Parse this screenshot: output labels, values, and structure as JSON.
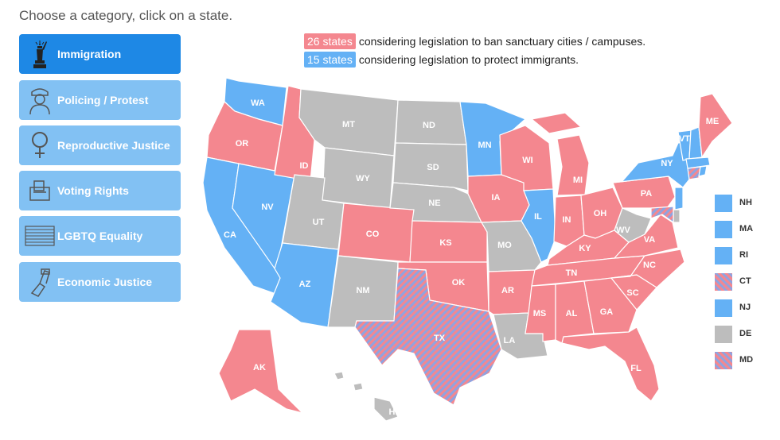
{
  "prompt": "Choose a category, click on a state.",
  "categories": [
    {
      "label": "Immigration",
      "icon": "statue-of-liberty-icon",
      "active": true
    },
    {
      "label": "Policing / Protest",
      "icon": "police-officer-icon",
      "active": false
    },
    {
      "label": "Reproductive Justice",
      "icon": "female-symbol-icon",
      "active": false
    },
    {
      "label": "Voting Rights",
      "icon": "ballot-box-icon",
      "active": false
    },
    {
      "label": "LGBTQ Equality",
      "icon": "flag-icon",
      "active": false
    },
    {
      "label": "Economic Justice",
      "icon": "protest-fist-icon",
      "active": false
    }
  ],
  "legend": [
    {
      "badge": "26 states",
      "text": "considering legislation to ban sanctuary cities / campuses.",
      "color": "#f4878f"
    },
    {
      "badge": "15 states",
      "text": "considering legislation to protect immigrants.",
      "color": "#64b1f5"
    }
  ],
  "colors": {
    "ban": "#f4878f",
    "protect": "#64b1f5",
    "none": "#bdbdbd",
    "both": "striped"
  },
  "states": {
    "WA": "protect",
    "OR": "ban",
    "CA": "protect",
    "NV": "protect",
    "ID": "ban",
    "MT": "none",
    "WY": "none",
    "UT": "none",
    "AZ": "protect",
    "CO": "ban",
    "NM": "none",
    "ND": "none",
    "SD": "none",
    "NE": "none",
    "KS": "ban",
    "OK": "ban",
    "TX": "both",
    "MN": "protect",
    "IA": "ban",
    "MO": "none",
    "AR": "ban",
    "LA": "none",
    "WI": "ban",
    "IL": "protect",
    "MI": "ban",
    "IN": "ban",
    "OH": "ban",
    "KY": "ban",
    "TN": "ban",
    "MS": "ban",
    "AL": "ban",
    "GA": "ban",
    "FL": "ban",
    "SC": "ban",
    "NC": "ban",
    "VA": "ban",
    "WV": "none",
    "PA": "ban",
    "NY": "protect",
    "VT": "protect",
    "ME": "ban",
    "AK": "ban",
    "HI": "none"
  },
  "small_states": [
    {
      "abbr": "NH",
      "status": "protect"
    },
    {
      "abbr": "MA",
      "status": "protect"
    },
    {
      "abbr": "RI",
      "status": "protect"
    },
    {
      "abbr": "CT",
      "status": "both"
    },
    {
      "abbr": "NJ",
      "status": "protect"
    },
    {
      "abbr": "DE",
      "status": "none"
    },
    {
      "abbr": "MD",
      "status": "both"
    }
  ]
}
